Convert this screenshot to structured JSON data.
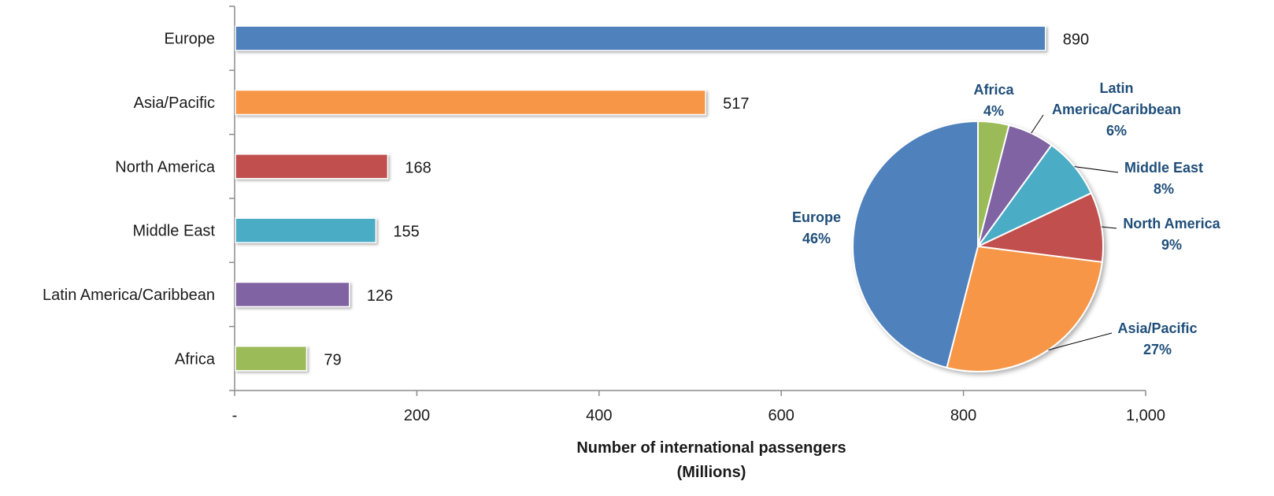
{
  "chart_data": [
    {
      "type": "bar",
      "orientation": "horizontal",
      "categories": [
        "Europe",
        "Asia/Pacific",
        "North America",
        "Middle East",
        "Latin America/Caribbean",
        "Africa"
      ],
      "values": [
        890,
        517,
        168,
        155,
        126,
        79
      ],
      "data_labels": [
        "890",
        "517",
        "168",
        "155",
        "126",
        "79"
      ],
      "colors": [
        "#4f81bd",
        "#f79646",
        "#c0504d",
        "#4bacc6",
        "#8064a2",
        "#9bbb59"
      ],
      "xlabel": "Number of international passengers",
      "xlabel_line2": "(Millions)",
      "xlim": [
        0,
        1000
      ],
      "xticks": [
        0,
        200,
        400,
        600,
        800,
        1000
      ],
      "xtick_labels": [
        "-",
        "200",
        "400",
        "600",
        "800",
        "1,000"
      ],
      "grid": false,
      "legend": "none"
    },
    {
      "type": "pie",
      "categories": [
        "Europe",
        "Asia/Pacific",
        "North America",
        "Middle East",
        "Latin America/Caribbean",
        "Africa"
      ],
      "values": [
        46,
        27,
        9,
        8,
        6,
        4
      ],
      "colors": [
        "#4f81bd",
        "#f79646",
        "#c0504d",
        "#4bacc6",
        "#8064a2",
        "#9bbb59"
      ],
      "label_lines": [
        [
          "Europe",
          "46%"
        ],
        [
          "Asia/Pacific",
          "27%"
        ],
        [
          "North America",
          "9%"
        ],
        [
          "Middle East",
          "8%"
        ],
        [
          "Latin",
          "America/Caribbean",
          "6%"
        ],
        [
          "Africa",
          "4%"
        ]
      ],
      "legend": "none"
    }
  ]
}
